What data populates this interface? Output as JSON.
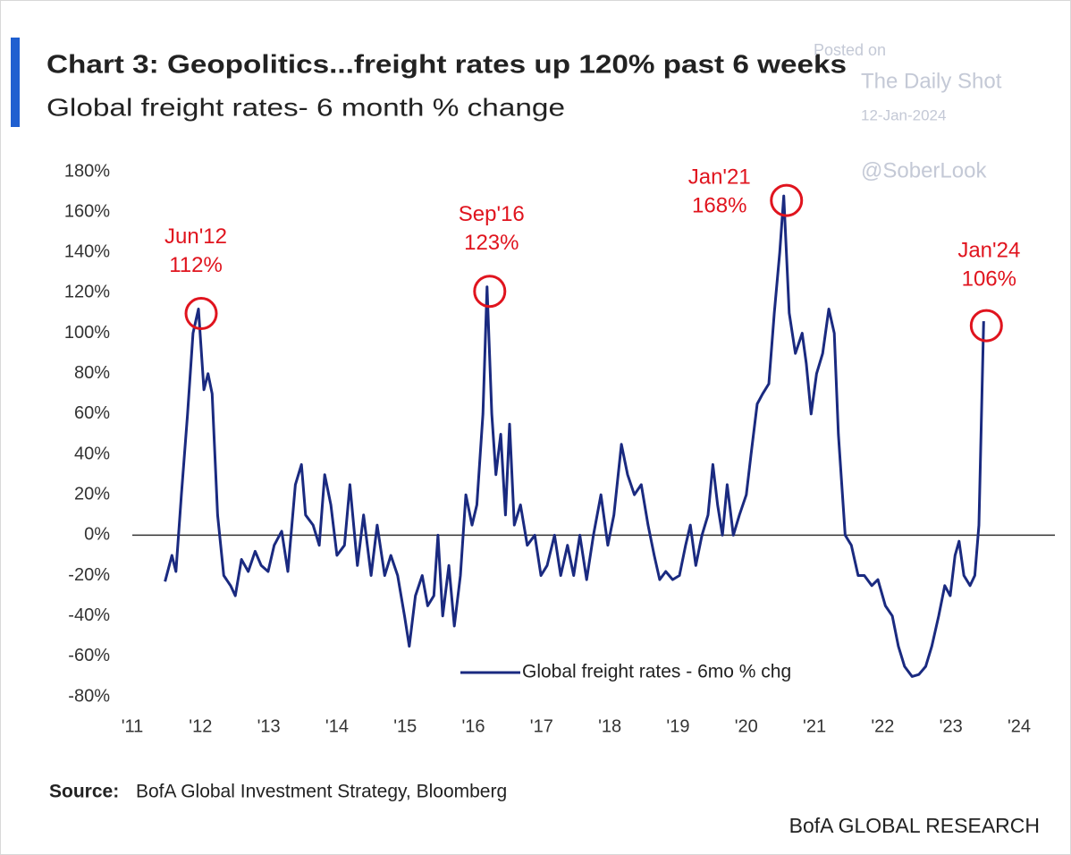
{
  "chart_data": {
    "type": "line",
    "title": "Chart 3: Geopolitics...freight rates up 120% past 6 weeks",
    "subtitle": "Global freight rates- 6 month % change",
    "x": [
      2011.48,
      2011.58,
      2011.64,
      2011.72,
      2011.81,
      2011.89,
      2011.97,
      2012.05,
      2012.11,
      2012.17,
      2012.25,
      2012.34,
      2012.44,
      2012.51,
      2012.6,
      2012.7,
      2012.8,
      2012.89,
      2012.99,
      2013.08,
      2013.19,
      2013.28,
      2013.39,
      2013.48,
      2013.54,
      2013.65,
      2013.74,
      2013.82,
      2013.91,
      2014.0,
      2014.11,
      2014.19,
      2014.3,
      2014.39,
      2014.5,
      2014.59,
      2014.7,
      2014.79,
      2014.89,
      2014.99,
      2015.06,
      2015.15,
      2015.25,
      2015.33,
      2015.42,
      2015.48,
      2015.55,
      2015.64,
      2015.72,
      2015.81,
      2015.89,
      2015.98,
      2016.05,
      2016.14,
      2016.2,
      2016.27,
      2016.33,
      2016.4,
      2016.47,
      2016.53,
      2016.6,
      2016.69,
      2016.79,
      2016.9,
      2016.99,
      2017.08,
      2017.19,
      2017.28,
      2017.38,
      2017.47,
      2017.56,
      2017.66,
      2017.76,
      2017.87,
      2017.97,
      2018.06,
      2018.17,
      2018.26,
      2018.36,
      2018.46,
      2018.56,
      2018.65,
      2018.73,
      2018.82,
      2018.92,
      2019.02,
      2019.11,
      2019.18,
      2019.26,
      2019.35,
      2019.44,
      2019.51,
      2019.58,
      2019.65,
      2019.72,
      2019.81,
      2019.9,
      2020.0,
      2020.07,
      2020.16,
      2020.24,
      2020.33,
      2020.41,
      2020.49,
      2020.55,
      2020.63,
      2020.72,
      2020.82,
      2020.88,
      2020.95,
      2021.03,
      2021.12,
      2021.21,
      2021.29,
      2021.35,
      2021.45,
      2021.54,
      2021.64,
      2021.73,
      2021.84,
      2021.93,
      2022.04,
      2022.14,
      2022.23,
      2022.32,
      2022.43,
      2022.53,
      2022.63,
      2022.72,
      2022.82,
      2022.91,
      2022.99,
      2023.06,
      2023.12,
      2023.19,
      2023.28,
      2023.35,
      2023.41,
      2023.48
    ],
    "series": [
      {
        "name": "Global freight rates - 6mo % chg",
        "color": "#1a2a80",
        "values": [
          -23,
          -10,
          -18,
          20,
          60,
          100,
          112,
          72,
          80,
          70,
          10,
          -20,
          -25,
          -30,
          -12,
          -18,
          -8,
          -15,
          -18,
          -5,
          2,
          -18,
          25,
          35,
          10,
          5,
          -5,
          30,
          15,
          -10,
          -5,
          25,
          -15,
          10,
          -20,
          5,
          -20,
          -10,
          -20,
          -40,
          -55,
          -30,
          -20,
          -35,
          -30,
          0,
          -40,
          -15,
          -45,
          -20,
          20,
          5,
          15,
          60,
          123,
          60,
          30,
          50,
          10,
          55,
          5,
          15,
          -5,
          0,
          -20,
          -15,
          0,
          -20,
          -5,
          -20,
          0,
          -22,
          0,
          20,
          -5,
          10,
          45,
          30,
          20,
          25,
          5,
          -10,
          -22,
          -18,
          -22,
          -20,
          -5,
          5,
          -15,
          0,
          10,
          35,
          15,
          0,
          25,
          0,
          10,
          20,
          40,
          65,
          70,
          75,
          110,
          140,
          168,
          110,
          90,
          100,
          85,
          60,
          80,
          90,
          112,
          100,
          50,
          0,
          -5,
          -20,
          -20,
          -25,
          -22,
          -35,
          -40,
          -55,
          -65,
          -70,
          -69,
          -65,
          -55,
          -40,
          -25,
          -30,
          -10,
          -3,
          -20,
          -25,
          -20,
          5,
          106
        ]
      }
    ],
    "xlim": [
      2011,
      2024
    ],
    "xticks": [
      {
        "value": 2011,
        "label": "'11"
      },
      {
        "value": 2012,
        "label": "'12"
      },
      {
        "value": 2013,
        "label": "'13"
      },
      {
        "value": 2014,
        "label": "'14"
      },
      {
        "value": 2015,
        "label": "'15"
      },
      {
        "value": 2016,
        "label": "'16"
      },
      {
        "value": 2017,
        "label": "'17"
      },
      {
        "value": 2018,
        "label": "'18"
      },
      {
        "value": 2019,
        "label": "'19"
      },
      {
        "value": 2020,
        "label": "'20"
      },
      {
        "value": 2021,
        "label": "'21"
      },
      {
        "value": 2022,
        "label": "'22"
      },
      {
        "value": 2023,
        "label": "'23"
      },
      {
        "value": 2024,
        "label": "'24"
      }
    ],
    "ylim": [
      -80,
      180
    ],
    "yticks": [
      {
        "value": 180,
        "label": "180%"
      },
      {
        "value": 160,
        "label": "160%"
      },
      {
        "value": 140,
        "label": "140%"
      },
      {
        "value": 120,
        "label": "120%"
      },
      {
        "value": 100,
        "label": "100%"
      },
      {
        "value": 80,
        "label": "80%"
      },
      {
        "value": 60,
        "label": "60%"
      },
      {
        "value": 40,
        "label": "40%"
      },
      {
        "value": 20,
        "label": "20%"
      },
      {
        "value": 0,
        "label": "0%"
      },
      {
        "value": -20,
        "label": "-20%"
      },
      {
        "value": -40,
        "label": "-40%"
      },
      {
        "value": -60,
        "label": "-60%"
      },
      {
        "value": -80,
        "label": "-80%"
      }
    ],
    "grid": false,
    "legend": "lower center",
    "annotations": [
      {
        "lines": [
          "Jun'12",
          "112%"
        ],
        "x": 2011.97,
        "y": 112
      },
      {
        "lines": [
          "Sep'16",
          "123%"
        ],
        "x": 2016.2,
        "y": 123
      },
      {
        "lines": [
          "Jan'21",
          "168%"
        ],
        "x": 2020.55,
        "y": 168
      },
      {
        "lines": [
          "Jan'24",
          "106%"
        ],
        "x": 2023.48,
        "y": 106
      }
    ],
    "annotation_color": "#e0141e",
    "source_label": "Source:",
    "source": "BofA Global Investment Strategy, Bloomberg",
    "footer": "BofA GLOBAL RESEARCH",
    "watermark": [
      "Posted on",
      "The Daily Shot",
      "12-Jan-2024",
      "@SoberLook"
    ]
  }
}
